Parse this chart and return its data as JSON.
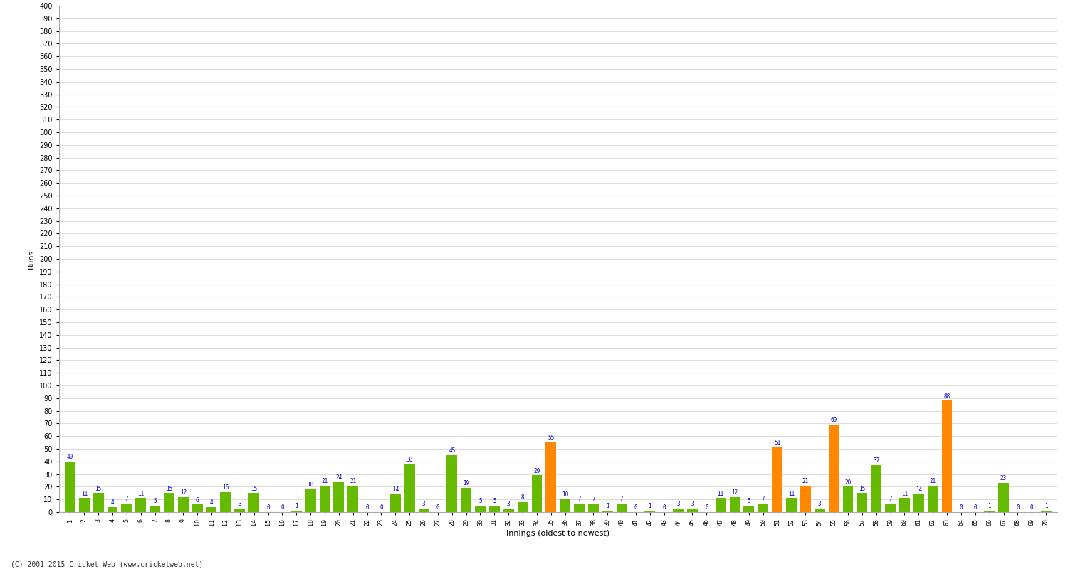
{
  "innings_labels": [
    "1",
    "2",
    "3",
    "4",
    "5",
    "6",
    "7",
    "8",
    "9",
    "10",
    "11",
    "12",
    "13",
    "14",
    "15",
    "16",
    "17",
    "18",
    "19",
    "20",
    "21",
    "22",
    "23",
    "24",
    "25",
    "26",
    "27",
    "28",
    "29",
    "30",
    "31",
    "32",
    "33",
    "34",
    "35",
    "36",
    "37",
    "38",
    "39",
    "40",
    "41",
    "42",
    "43",
    "44",
    "45",
    "46",
    "47",
    "48",
    "49",
    "50",
    "51",
    "52",
    "53",
    "54",
    "55",
    "56",
    "57",
    "58",
    "59",
    "60",
    "61",
    "62",
    "63",
    "64",
    "65",
    "66",
    "67",
    "68",
    "69",
    "70"
  ],
  "values": [
    40,
    11,
    15,
    4,
    7,
    11,
    5,
    15,
    12,
    6,
    4,
    16,
    3,
    15,
    0,
    0,
    1,
    18,
    21,
    24,
    21,
    0,
    0,
    14,
    38,
    3,
    0,
    45,
    19,
    5,
    5,
    3,
    8,
    29,
    55,
    10,
    7,
    7,
    1,
    7,
    0,
    1,
    0,
    3,
    3,
    0,
    11,
    12,
    5,
    7,
    51,
    11,
    21,
    3,
    69,
    20,
    15,
    37,
    7,
    11,
    14,
    21,
    88,
    0,
    0,
    1,
    23,
    0,
    0,
    1
  ],
  "colors": [
    "#66bb00",
    "#66bb00",
    "#66bb00",
    "#66bb00",
    "#66bb00",
    "#66bb00",
    "#66bb00",
    "#66bb00",
    "#66bb00",
    "#66bb00",
    "#66bb00",
    "#66bb00",
    "#66bb00",
    "#66bb00",
    "#66bb00",
    "#66bb00",
    "#66bb00",
    "#66bb00",
    "#66bb00",
    "#66bb00",
    "#66bb00",
    "#66bb00",
    "#66bb00",
    "#66bb00",
    "#66bb00",
    "#66bb00",
    "#66bb00",
    "#66bb00",
    "#66bb00",
    "#66bb00",
    "#66bb00",
    "#66bb00",
    "#66bb00",
    "#66bb00",
    "#ff8800",
    "#66bb00",
    "#66bb00",
    "#66bb00",
    "#66bb00",
    "#66bb00",
    "#66bb00",
    "#66bb00",
    "#66bb00",
    "#66bb00",
    "#66bb00",
    "#66bb00",
    "#66bb00",
    "#66bb00",
    "#66bb00",
    "#66bb00",
    "#ff8800",
    "#66bb00",
    "#ff8800",
    "#66bb00",
    "#ff8800",
    "#66bb00",
    "#66bb00",
    "#66bb00",
    "#66bb00",
    "#66bb00",
    "#66bb00",
    "#66bb00",
    "#ff8800",
    "#66bb00",
    "#66bb00",
    "#66bb00",
    "#66bb00",
    "#66bb00",
    "#66bb00",
    "#66bb00"
  ],
  "ylabel": "Runs",
  "xlabel": "Innings (oldest to newest)",
  "ylim": [
    0,
    400
  ],
  "yticks": [
    0,
    10,
    20,
    30,
    40,
    50,
    60,
    70,
    80,
    90,
    100,
    110,
    120,
    130,
    140,
    150,
    160,
    170,
    180,
    190,
    200,
    210,
    220,
    230,
    240,
    250,
    260,
    270,
    280,
    290,
    300,
    310,
    320,
    330,
    340,
    350,
    360,
    370,
    380,
    390,
    400
  ],
  "background_color": "#ffffff",
  "plot_bg_color": "#ffffff",
  "grid_color": "#dddddd",
  "label_color": "#0000cc",
  "footer": "(C) 2001-2015 Cricket Web (www.cricketweb.net)"
}
